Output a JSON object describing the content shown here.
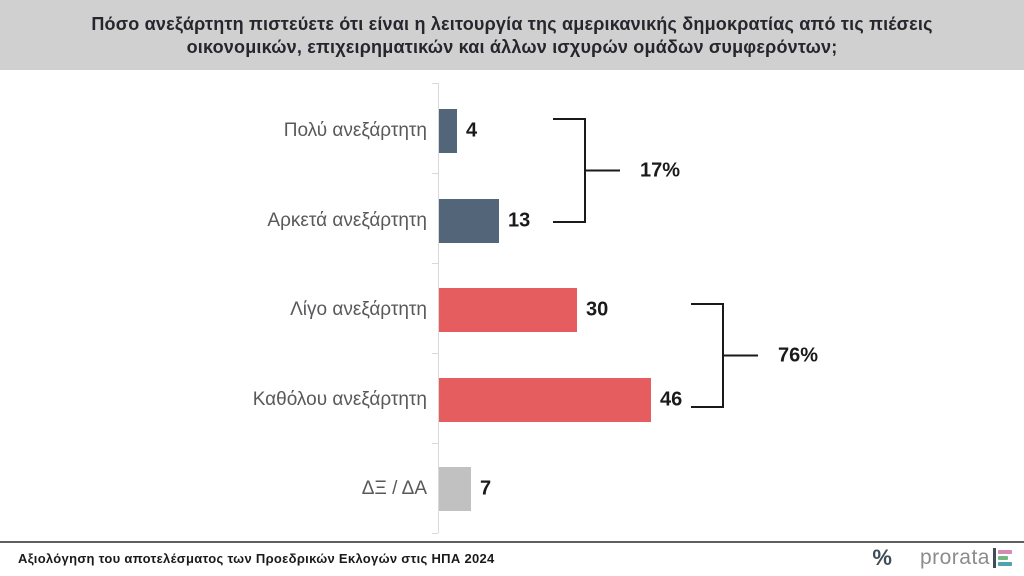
{
  "header": {
    "title_line1": "Πόσο ανεξάρτητη πιστεύετε ότι είναι η λειτουργία της αμερικανικής δημοκρατίας από τις πιέσεις",
    "title_line2": "οικονομικών, επιχειρηματικών και άλλων ισχυρών ομάδων συμφερόντων;"
  },
  "chart_data": {
    "type": "bar",
    "orientation": "horizontal",
    "unit": "%",
    "categories": [
      "Πολύ ανεξάρτητη",
      "Αρκετά ανεξάρτητη",
      "Λίγο ανεξάρτητη",
      "Καθόλου  ανεξάρτητη",
      "ΔΞ / ΔΑ"
    ],
    "values": [
      4,
      13,
      30,
      46,
      7
    ],
    "bar_colors": [
      "#536579",
      "#536579",
      "#e65d60",
      "#e65d60",
      "#c1c1c1"
    ],
    "value_label_color": "#1a1a1a",
    "category_label_color": "#58595b",
    "axis_color": "#d9d9d9",
    "annotations": [
      {
        "label": "17%",
        "groups_categories": [
          0,
          1
        ]
      },
      {
        "label": "76%",
        "groups_categories": [
          2,
          3
        ]
      }
    ],
    "xlim": [
      0,
      100
    ],
    "grid": false,
    "legend": false
  },
  "footer": {
    "source": "Αξιολόγηση του αποτελέσματος των Προεδρικών Εκλογών στις ΗΠΑ 2024",
    "logo": {
      "percent_mark": "%",
      "brand": "prorata",
      "mark_colors": {
        "vbar": "#3f4d57",
        "top": "#d58ab4",
        "middle": "#6fba7c",
        "bottom": "#4fa3ad"
      }
    }
  },
  "colors": {
    "banner_bg": "#d1d0d1",
    "banner_text": "#26262c",
    "slate": "#536579",
    "red": "#e65d60",
    "gray": "#c1c1c1"
  }
}
